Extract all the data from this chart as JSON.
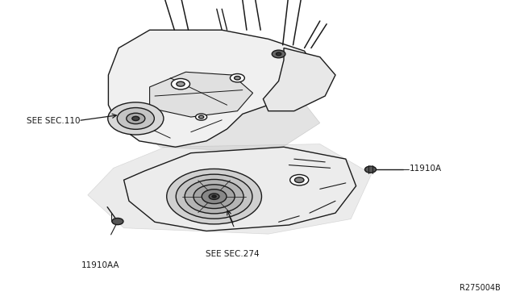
{
  "background_color": "#ffffff",
  "fig_width": 6.4,
  "fig_height": 3.72,
  "dpi": 100,
  "line_color": "#1a1a1a",
  "text_color": "#1a1a1a",
  "label_see_sec_110": "SEE SEC.110",
  "label_see_sec_274": "SEE SEC.274",
  "label_11910A": "11910A",
  "label_11910AA": "11910AA",
  "label_ref": "R275004B"
}
